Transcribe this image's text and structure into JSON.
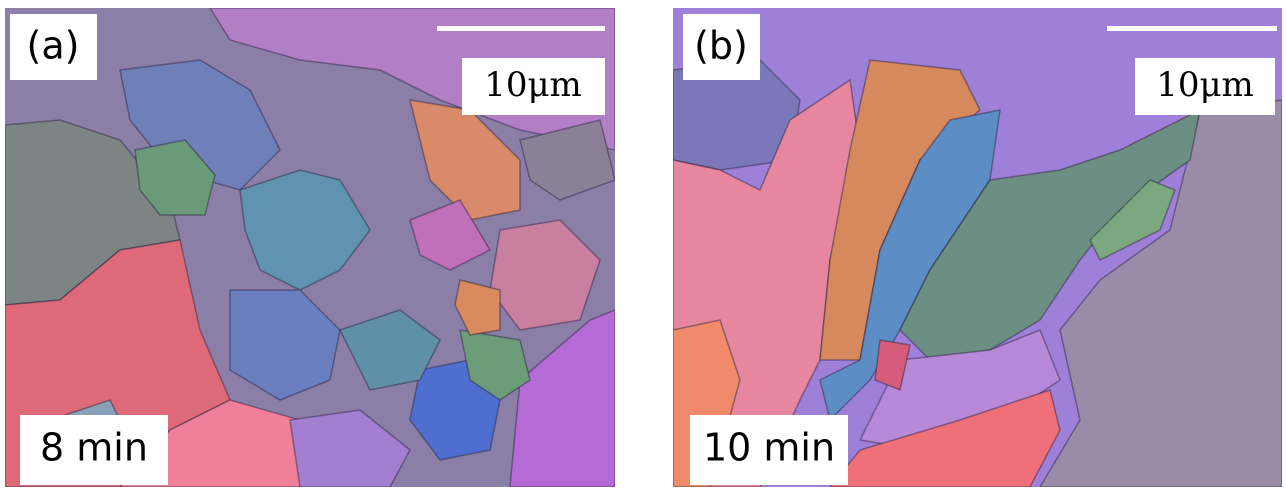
{
  "panels": [
    {
      "label": "(a)",
      "scale": "10μm",
      "time": "8 min"
    },
    {
      "label": "(b)",
      "scale": "10μm",
      "time": "10 min"
    }
  ]
}
